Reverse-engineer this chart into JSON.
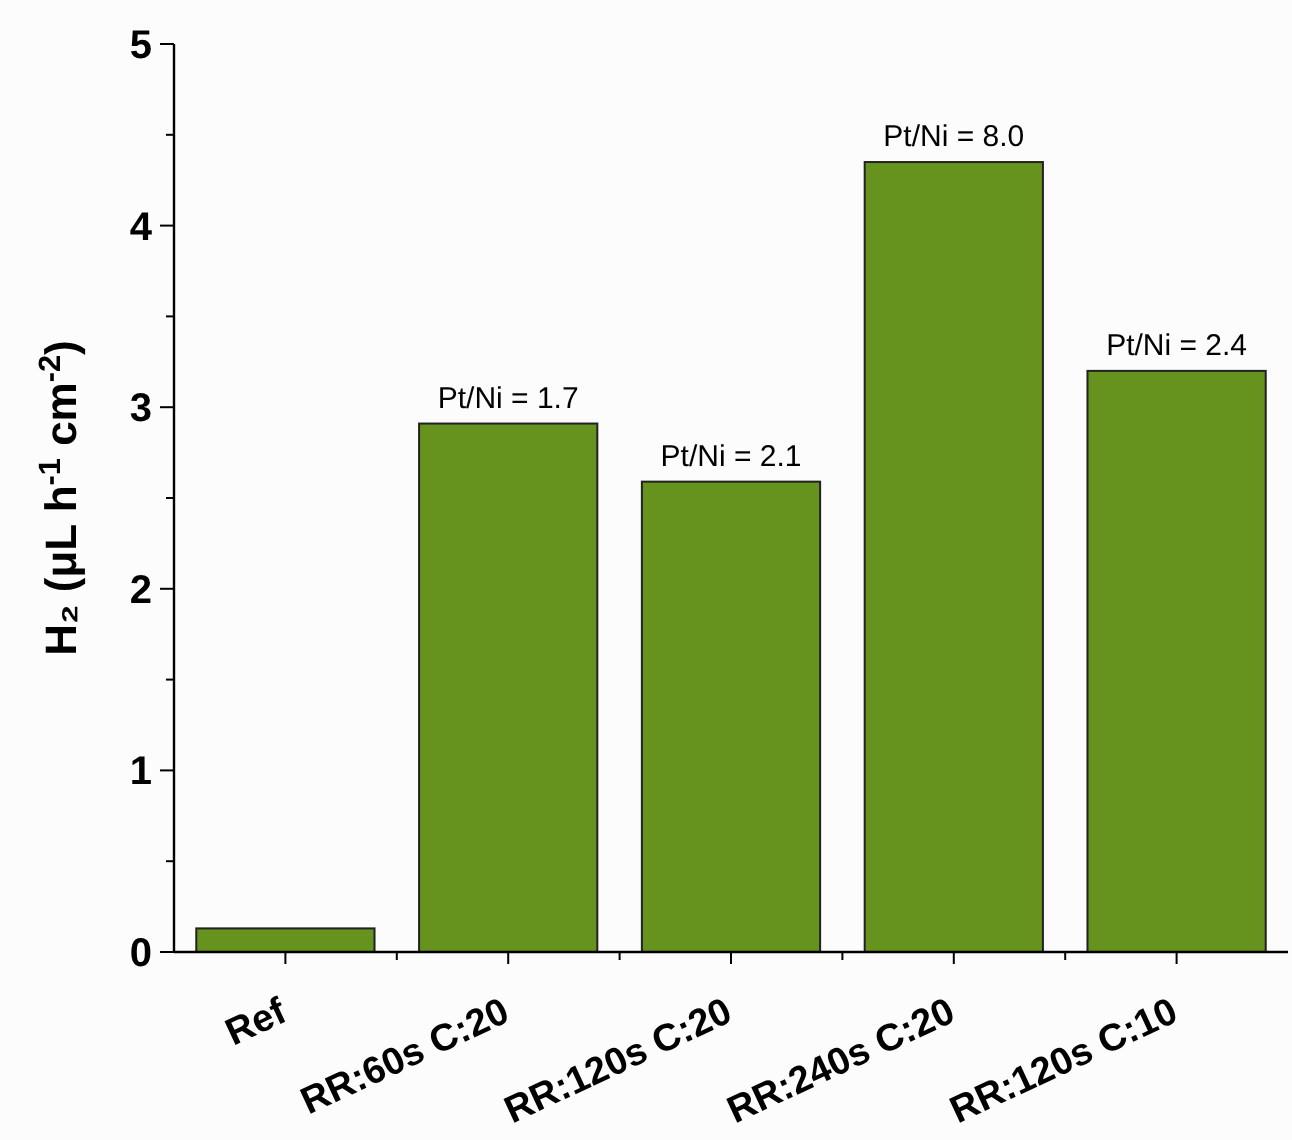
{
  "chart_data": {
    "type": "bar",
    "ylabel": "H₂ (μL h$^{-1}$ cm$^{-2}$)",
    "categories": [
      "Ref",
      "RR:60s C:20",
      "RR:120s C:20",
      "RR:240s C:20",
      "RR:120s C:10"
    ],
    "values": [
      0.13,
      2.91,
      2.59,
      4.35,
      3.2
    ],
    "color": "#66921e",
    "ylim": [
      0,
      5
    ],
    "yticks": [
      0,
      {
        "value": 0.5,
        "label": null
      },
      1,
      {
        "value": 1.5,
        "label": null
      },
      2,
      {
        "value": 2.5,
        "label": null
      },
      3,
      {
        "value": 3.5,
        "label": null
      },
      4,
      {
        "value": 4.5,
        "label": null
      },
      5
    ],
    "annotations": [
      {
        "text": "Pt/Ni = 1.7",
        "x": "RR:60s C:20",
        "y": 2.91
      },
      {
        "text": "Pt/Ni = 2.1",
        "x": "RR:120s C:20",
        "y": 2.59
      },
      {
        "text": "Pt/Ni = 8.0",
        "x": "RR:240s C:20",
        "y": 4.35
      },
      {
        "text": "Pt/Ni = 2.4",
        "x": "RR:120s C:10",
        "y": 3.2
      }
    ]
  }
}
